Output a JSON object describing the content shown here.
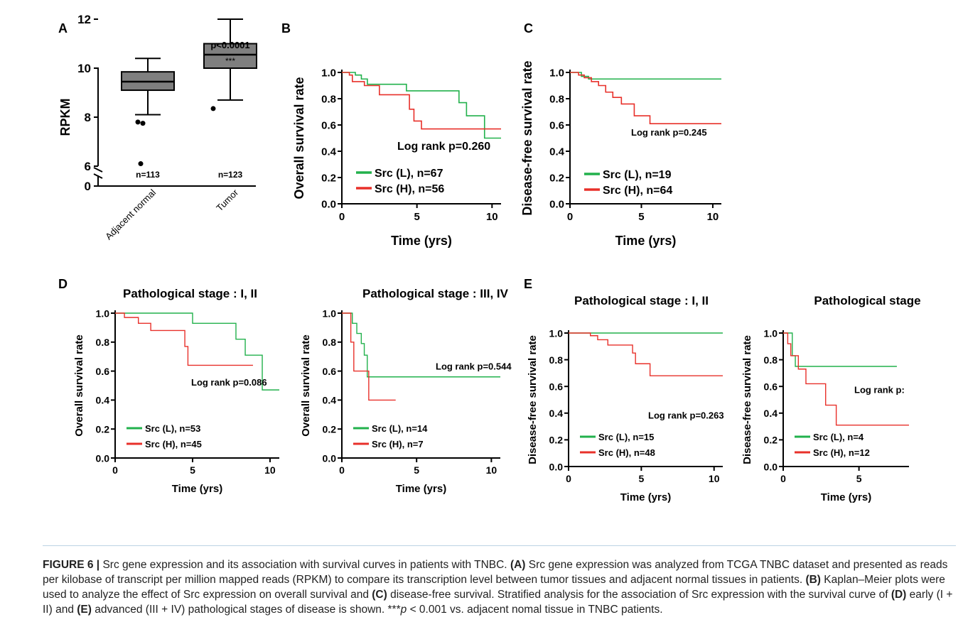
{
  "panel_letters": [
    "A",
    "B",
    "C",
    "D",
    "E"
  ],
  "chart_data": [
    {
      "panel": "A",
      "type": "box",
      "ylabel": "RPKM",
      "categories": [
        "Adjacent normal",
        "Tumor"
      ],
      "y_ticks": [
        "0",
        "6",
        "8",
        "10",
        "12"
      ],
      "boxes": [
        {
          "category": "Adjacent normal",
          "min": 8.1,
          "q1": 9.1,
          "median": 9.45,
          "q3": 9.85,
          "max": 10.4,
          "outliers": [
            7.8,
            7.75,
            6.1
          ],
          "n_label": "n=113"
        },
        {
          "category": "Tumor",
          "min": 8.7,
          "q1": 10.0,
          "median": 10.55,
          "q3": 11.0,
          "max": 12.0,
          "outliers": [
            8.35
          ],
          "n_label": "n=123"
        }
      ],
      "annotation_p": "p<0.0001",
      "annotation_stars": "***"
    },
    {
      "panel": "B",
      "type": "line",
      "xlabel": "Time (yrs)",
      "ylabel": "Overall survival rate",
      "xlim": [
        0,
        10.6
      ],
      "ylim": [
        0,
        1.0
      ],
      "x_ticks": [
        "0",
        "5",
        "10"
      ],
      "y_ticks": [
        "0.0",
        "0.2",
        "0.4",
        "0.6",
        "0.8",
        "1.0"
      ],
      "logrank": "Log rank p=0.260",
      "series": [
        {
          "name": "Src (L), n=67",
          "color": "#22b14c",
          "x": [
            0,
            0.9,
            1.3,
            1.7,
            4.3,
            7.8,
            8.3,
            9.5,
            10.6
          ],
          "y": [
            1.0,
            0.98,
            0.95,
            0.91,
            0.86,
            0.77,
            0.67,
            0.5,
            0.5
          ]
        },
        {
          "name": "Src (H), n=56",
          "color": "#e8302a",
          "x": [
            0,
            0.5,
            0.7,
            1.5,
            2.5,
            4.5,
            4.8,
            5.3,
            10.6
          ],
          "y": [
            1.0,
            0.98,
            0.93,
            0.9,
            0.83,
            0.72,
            0.63,
            0.57,
            0.57
          ]
        }
      ]
    },
    {
      "panel": "C",
      "type": "line",
      "xlabel": "Time (yrs)",
      "ylabel": "Disease-free survival rate",
      "xlim": [
        0,
        10.6
      ],
      "ylim": [
        0,
        1.0
      ],
      "x_ticks": [
        "0",
        "5",
        "10"
      ],
      "y_ticks": [
        "0.0",
        "0.2",
        "0.4",
        "0.6",
        "0.8",
        "1.0"
      ],
      "logrank": "Log rank p=0.245",
      "series": [
        {
          "name": "Src (L), n=19",
          "color": "#22b14c",
          "x": [
            0,
            0.8,
            1.3,
            10.6
          ],
          "y": [
            1.0,
            0.97,
            0.95,
            0.95
          ]
        },
        {
          "name": "Src (H), n=64",
          "color": "#e8302a",
          "x": [
            0,
            0.6,
            1.0,
            1.5,
            2.0,
            2.5,
            3.0,
            3.6,
            4.5,
            5.6,
            10.6
          ],
          "y": [
            1.0,
            0.98,
            0.96,
            0.93,
            0.9,
            0.85,
            0.81,
            0.76,
            0.67,
            0.61,
            0.61
          ]
        }
      ]
    },
    {
      "panel": "D",
      "type": "line",
      "title": "Pathological stage : I, II",
      "xlabel": "Time (yrs)",
      "ylabel": "Overall survival rate",
      "xlim": [
        0,
        10.6
      ],
      "ylim": [
        0,
        1.0
      ],
      "x_ticks": [
        "0",
        "5",
        "10"
      ],
      "y_ticks": [
        "0.0",
        "0.2",
        "0.4",
        "0.6",
        "0.8",
        "1.0"
      ],
      "logrank": "Log rank p=0.086",
      "series": [
        {
          "name": "Src (L), n=53",
          "color": "#22b14c",
          "x": [
            0,
            2.0,
            5.0,
            7.8,
            8.4,
            9.5,
            10.6
          ],
          "y": [
            1.0,
            1.0,
            0.93,
            0.82,
            0.71,
            0.47,
            0.47
          ]
        },
        {
          "name": "Src (H), n=45",
          "color": "#e8302a",
          "x": [
            0,
            0.6,
            1.5,
            2.3,
            4.5,
            4.7,
            8.9
          ],
          "y": [
            1.0,
            0.97,
            0.93,
            0.88,
            0.77,
            0.64,
            0.64
          ]
        }
      ]
    },
    {
      "panel": "D",
      "type": "line",
      "title": "Pathological stage : III, IV",
      "xlabel": "Time (yrs)",
      "ylabel": "Overall survival rate",
      "xlim": [
        0,
        10.6
      ],
      "ylim": [
        0,
        1.0
      ],
      "x_ticks": [
        "0",
        "5",
        "10"
      ],
      "y_ticks": [
        "0.0",
        "0.2",
        "0.4",
        "0.6",
        "0.8",
        "1.0"
      ],
      "logrank": "Log rank p=0.544",
      "series": [
        {
          "name": "Src (L), n=14",
          "color": "#22b14c",
          "x": [
            0,
            0.7,
            1.0,
            1.3,
            1.5,
            1.7,
            10.6
          ],
          "y": [
            1.0,
            0.93,
            0.86,
            0.79,
            0.71,
            0.56,
            0.56
          ]
        },
        {
          "name": "Src (H), n=7",
          "color": "#e8302a",
          "x": [
            0,
            0.6,
            0.8,
            1.8,
            3.6
          ],
          "y": [
            1.0,
            0.8,
            0.6,
            0.4,
            0.4
          ]
        }
      ]
    },
    {
      "panel": "E",
      "type": "line",
      "title": "Pathological stage : I, II",
      "xlabel": "Time (yrs)",
      "ylabel": "Disease-free survival rate",
      "xlim": [
        0,
        10.6
      ],
      "ylim": [
        0,
        1.0
      ],
      "x_ticks": [
        "0",
        "5",
        "10"
      ],
      "y_ticks": [
        "0.0",
        "0.2",
        "0.4",
        "0.6",
        "0.8",
        "1.0"
      ],
      "logrank": "Log rank p=0.263",
      "series": [
        {
          "name": "Src (L), n=15",
          "color": "#22b14c",
          "x": [
            0,
            10.6
          ],
          "y": [
            1.0,
            1.0
          ]
        },
        {
          "name": "Src (H), n=48",
          "color": "#e8302a",
          "x": [
            0,
            1.5,
            2.0,
            2.7,
            4.4,
            4.6,
            5.6,
            10.6
          ],
          "y": [
            1.0,
            0.98,
            0.95,
            0.91,
            0.85,
            0.77,
            0.68,
            0.68
          ]
        }
      ]
    },
    {
      "panel": "E",
      "type": "line",
      "title": "Pathological stage",
      "xlabel": "Time (yrs)",
      "ylabel": "Disease-free survival rate",
      "xlim": [
        0,
        8.3
      ],
      "ylim": [
        0,
        1.0
      ],
      "x_ticks": [
        "0",
        "5"
      ],
      "y_ticks": [
        "0.0",
        "0.2",
        "0.4",
        "0.6",
        "0.8",
        "1.0"
      ],
      "logrank": "Log rank p:",
      "series": [
        {
          "name": "Src (L), n=4",
          "color": "#22b14c",
          "x": [
            0,
            0.6,
            0.8,
            7.5
          ],
          "y": [
            1.0,
            0.83,
            0.75,
            0.75
          ]
        },
        {
          "name": "Src (H), n=12",
          "color": "#e8302a",
          "x": [
            0,
            0.3,
            0.5,
            1.0,
            1.5,
            2.8,
            3.5,
            8.3
          ],
          "y": [
            1.0,
            0.92,
            0.83,
            0.73,
            0.62,
            0.46,
            0.31,
            0.31
          ]
        }
      ]
    }
  ],
  "caption": {
    "figure_label": "FIGURE 6 |",
    "intro": "Src gene expression and its association with survival curves in patients with TNBC.",
    "A_tag": "(A)",
    "A_text": "Src gene expression was analyzed from TCGA TNBC dataset and presented as reads per kilobase of transcript per million mapped reads (RPKM) to compare its transcription level between tumor tissues and adjacent normal tissues in patients.",
    "B_tag": "(B)",
    "B_text": "Kaplan–Meier plots were used to analyze the effect of Src expression on overall survival and",
    "C_tag": "(C)",
    "C_text": "disease-free survival. Stratified analysis for the association of Src expression with the survival curve of",
    "D_tag": "(D)",
    "D_text": "early (I + II) and",
    "E_tag": "(E)",
    "E_text": "advanced (III + IV) pathological stages of disease is shown. ***",
    "p_symbol": "p",
    "tail": "< 0.001 vs. adjacent nomal tissue in TNBC patients."
  }
}
